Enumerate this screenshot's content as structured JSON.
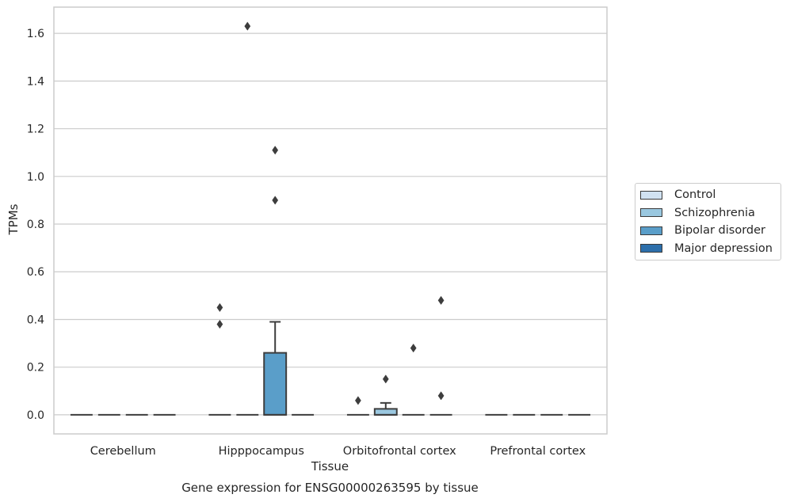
{
  "caption": "Gene expression for ENSG00000263595 by tissue",
  "chart_data": {
    "type": "box",
    "xlabel": "Tissue",
    "ylabel": "TPMs",
    "categories": [
      "Cerebellum",
      "Hipppocampus",
      "Orbitofrontal cortex",
      "Prefrontal cortex"
    ],
    "ylim": [
      -0.08,
      1.71
    ],
    "yticks": [
      "0.0",
      "0.2",
      "0.4",
      "0.6",
      "0.8",
      "1.0",
      "1.2",
      "1.4",
      "1.6"
    ],
    "grid": true,
    "legend_position": "right",
    "series": [
      {
        "name": "Control",
        "color": "#d1e2f2",
        "boxes": [
          {
            "category": "Cerebellum",
            "q1": 0,
            "median": 0,
            "q3": 0,
            "whisker_low": 0,
            "whisker_high": 0,
            "outliers": []
          },
          {
            "category": "Hipppocampus",
            "q1": 0,
            "median": 0,
            "q3": 0,
            "whisker_low": 0,
            "whisker_high": 0,
            "outliers": [
              0.38,
              0.45
            ]
          },
          {
            "category": "Orbitofrontal cortex",
            "q1": 0,
            "median": 0,
            "q3": 0,
            "whisker_low": 0,
            "whisker_high": 0,
            "outliers": [
              0.06
            ]
          },
          {
            "category": "Prefrontal cortex",
            "q1": 0,
            "median": 0,
            "q3": 0,
            "whisker_low": 0,
            "whisker_high": 0,
            "outliers": []
          }
        ]
      },
      {
        "name": "Schizophrenia",
        "color": "#9ac8e0",
        "boxes": [
          {
            "category": "Cerebellum",
            "q1": 0,
            "median": 0,
            "q3": 0,
            "whisker_low": 0,
            "whisker_high": 0,
            "outliers": []
          },
          {
            "category": "Hipppocampus",
            "q1": 0,
            "median": 0,
            "q3": 0,
            "whisker_low": 0,
            "whisker_high": 0,
            "outliers": [
              1.63
            ]
          },
          {
            "category": "Orbitofrontal cortex",
            "q1": 0,
            "median": 0,
            "q3": 0.025,
            "whisker_low": 0,
            "whisker_high": 0.05,
            "outliers": [
              0.15
            ]
          },
          {
            "category": "Prefrontal cortex",
            "q1": 0,
            "median": 0,
            "q3": 0,
            "whisker_low": 0,
            "whisker_high": 0,
            "outliers": []
          }
        ]
      },
      {
        "name": "Bipolar disorder",
        "color": "#5a9ec9",
        "boxes": [
          {
            "category": "Cerebellum",
            "q1": 0,
            "median": 0,
            "q3": 0,
            "whisker_low": 0,
            "whisker_high": 0,
            "outliers": []
          },
          {
            "category": "Hipppocampus",
            "q1": 0,
            "median": 0,
            "q3": 0.26,
            "whisker_low": 0,
            "whisker_high": 0.39,
            "outliers": [
              0.9,
              1.11
            ]
          },
          {
            "category": "Orbitofrontal cortex",
            "q1": 0,
            "median": 0,
            "q3": 0,
            "whisker_low": 0,
            "whisker_high": 0,
            "outliers": [
              0.28
            ]
          },
          {
            "category": "Prefrontal cortex",
            "q1": 0,
            "median": 0,
            "q3": 0,
            "whisker_low": 0,
            "whisker_high": 0,
            "outliers": []
          }
        ]
      },
      {
        "name": "Major depression",
        "color": "#2d6fab",
        "boxes": [
          {
            "category": "Cerebellum",
            "q1": 0,
            "median": 0,
            "q3": 0,
            "whisker_low": 0,
            "whisker_high": 0,
            "outliers": []
          },
          {
            "category": "Hipppocampus",
            "q1": 0,
            "median": 0,
            "q3": 0,
            "whisker_low": 0,
            "whisker_high": 0,
            "outliers": []
          },
          {
            "category": "Orbitofrontal cortex",
            "q1": 0,
            "median": 0,
            "q3": 0,
            "whisker_low": 0,
            "whisker_high": 0,
            "outliers": [
              0.08,
              0.48
            ]
          },
          {
            "category": "Prefrontal cortex",
            "q1": 0,
            "median": 0,
            "q3": 0,
            "whisker_low": 0,
            "whisker_high": 0,
            "outliers": []
          }
        ]
      }
    ]
  }
}
